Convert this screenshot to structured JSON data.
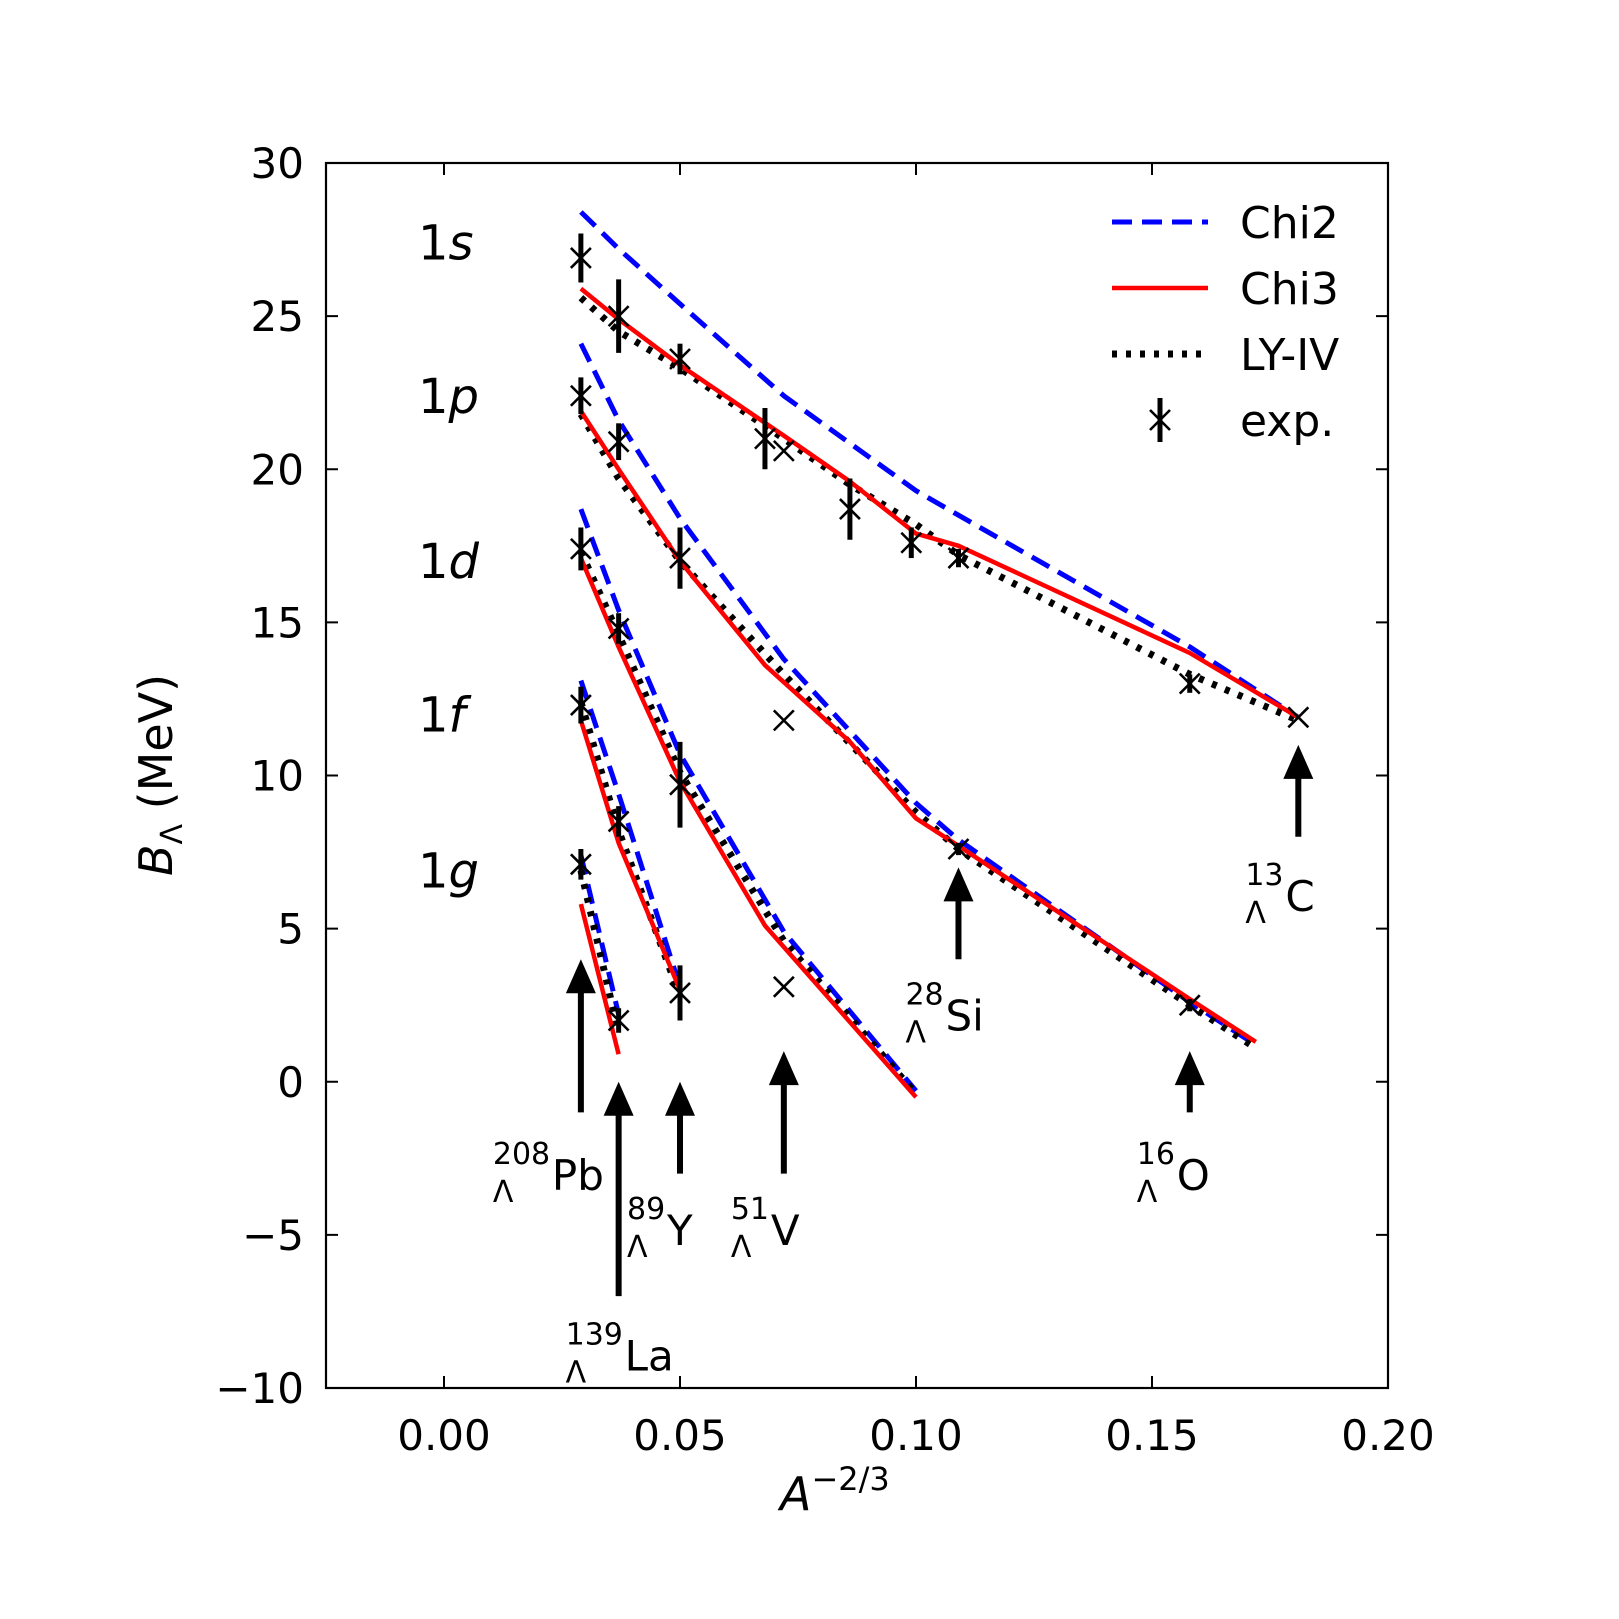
{
  "chart_data": {
    "type": "line",
    "xlabel": "A",
    "xlabel_exponent": "−2/3",
    "ylabel_main": "B",
    "ylabel_sub": "Λ",
    "ylabel_unit": " (MeV)",
    "xlim": [
      -0.025,
      0.2
    ],
    "ylim": [
      -10,
      30
    ],
    "xticks": [
      0.0,
      0.05,
      0.1,
      0.15,
      0.2
    ],
    "xtick_labels": [
      "0.00",
      "0.05",
      "0.10",
      "0.15",
      "0.20"
    ],
    "yticks": [
      -10,
      -5,
      0,
      5,
      10,
      15,
      20,
      25,
      30
    ],
    "ytick_labels": [
      "−10",
      "−5",
      "0",
      "5",
      "10",
      "15",
      "20",
      "25",
      "30"
    ],
    "legend": [
      {
        "label": "Chi2",
        "style": "dashed",
        "color": "#0000ff"
      },
      {
        "label": "Chi3",
        "style": "solid",
        "color": "#ff0000"
      },
      {
        "label": "LY-IV",
        "style": "dotted",
        "color": "#000000"
      },
      {
        "label": "exp.",
        "style": "marker",
        "color": "#000000"
      }
    ],
    "orbitals": [
      {
        "name": "1",
        "letter": "s",
        "y": 27.4
      },
      {
        "name": "1",
        "letter": "p",
        "y": 22.4
      },
      {
        "name": "1",
        "letter": "d",
        "y": 17.0
      },
      {
        "name": "1",
        "letter": "f",
        "y": 12.0
      },
      {
        "name": "1",
        "letter": "g",
        "y": 6.9
      }
    ],
    "series": [
      {
        "name": "Chi2",
        "orbital": "1s",
        "x": [
          0.029,
          0.037,
          0.05,
          0.072,
          0.1,
          0.109,
          0.158,
          0.181
        ],
        "y": [
          28.4,
          27.2,
          25.4,
          22.4,
          19.3,
          18.5,
          14.2,
          11.9
        ]
      },
      {
        "name": "Chi2",
        "orbital": "1p",
        "x": [
          0.029,
          0.037,
          0.05,
          0.072,
          0.1,
          0.109,
          0.158,
          0.172
        ],
        "y": [
          24.1,
          21.6,
          18.4,
          13.8,
          9.1,
          7.9,
          2.6,
          1.2
        ]
      },
      {
        "name": "Chi2",
        "orbital": "1d",
        "x": [
          0.029,
          0.037,
          0.05,
          0.072,
          0.1
        ],
        "y": [
          18.7,
          15.4,
          10.7,
          4.9,
          -0.3
        ]
      },
      {
        "name": "Chi2",
        "orbital": "1f",
        "x": [
          0.029,
          0.037,
          0.05
        ],
        "y": [
          13.1,
          9.4,
          3.1
        ]
      },
      {
        "name": "Chi2",
        "orbital": "1g",
        "x": [
          0.029,
          0.037
        ],
        "y": [
          7.4,
          2.2
        ]
      },
      {
        "name": "Chi3",
        "orbital": "1s",
        "x": [
          0.029,
          0.037,
          0.05,
          0.072,
          0.086,
          0.1,
          0.109,
          0.158,
          0.181
        ],
        "y": [
          25.9,
          24.9,
          23.4,
          21.1,
          19.6,
          17.9,
          17.5,
          14.0,
          11.9
        ]
      },
      {
        "name": "Chi3",
        "orbital": "1p",
        "x": [
          0.029,
          0.037,
          0.05,
          0.068,
          0.086,
          0.1,
          0.109,
          0.158,
          0.172
        ],
        "y": [
          21.9,
          20.0,
          17.0,
          13.6,
          11.1,
          8.6,
          7.7,
          2.7,
          1.3
        ]
      },
      {
        "name": "Chi3",
        "orbital": "1d",
        "x": [
          0.029,
          0.037,
          0.05,
          0.068,
          0.1
        ],
        "y": [
          17.1,
          14.2,
          9.8,
          5.1,
          -0.5
        ]
      },
      {
        "name": "Chi3",
        "orbital": "1f",
        "x": [
          0.029,
          0.037,
          0.05
        ],
        "y": [
          11.8,
          7.8,
          3.0
        ]
      },
      {
        "name": "Chi3",
        "orbital": "1g",
        "x": [
          0.029,
          0.037
        ],
        "y": [
          5.8,
          0.9
        ]
      },
      {
        "name": "LY-IV",
        "orbital": "1s",
        "x": [
          0.029,
          0.037,
          0.05,
          0.072,
          0.086,
          0.1,
          0.109,
          0.158,
          0.181
        ],
        "y": [
          25.6,
          24.5,
          23.3,
          21.0,
          19.5,
          18.2,
          17.2,
          13.3,
          11.8
        ]
      },
      {
        "name": "LY-IV",
        "orbital": "1p",
        "x": [
          0.029,
          0.037,
          0.05,
          0.072,
          0.1,
          0.109,
          0.158,
          0.172
        ],
        "y": [
          21.8,
          19.7,
          17.0,
          13.3,
          8.8,
          7.6,
          2.5,
          1.1
        ]
      },
      {
        "name": "LY-IV",
        "orbital": "1d",
        "x": [
          0.029,
          0.037,
          0.05,
          0.072,
          0.1
        ],
        "y": [
          17.3,
          14.6,
          10.1,
          4.6,
          -0.4
        ]
      },
      {
        "name": "LY-IV",
        "orbital": "1f",
        "x": [
          0.029,
          0.037,
          0.05
        ],
        "y": [
          12.4,
          8.2,
          2.8
        ]
      },
      {
        "name": "LY-IV",
        "orbital": "1g",
        "x": [
          0.029,
          0.037
        ],
        "y": [
          6.9,
          1.6
        ]
      }
    ],
    "experimental": [
      {
        "x": 0.029,
        "y": 26.9,
        "err": 0.8
      },
      {
        "x": 0.037,
        "y": 25.0,
        "err": 1.2
      },
      {
        "x": 0.05,
        "y": 23.6,
        "err": 0.5
      },
      {
        "x": 0.068,
        "y": 21.0,
        "err": 1.0
      },
      {
        "x": 0.072,
        "y": 20.6,
        "err": 0.0
      },
      {
        "x": 0.086,
        "y": 18.7,
        "err": 1.0
      },
      {
        "x": 0.099,
        "y": 17.6,
        "err": 0.5
      },
      {
        "x": 0.109,
        "y": 17.1,
        "err": 0.3
      },
      {
        "x": 0.158,
        "y": 13.0,
        "err": 0.3
      },
      {
        "x": 0.181,
        "y": 11.9,
        "err": 0.0
      },
      {
        "x": 0.029,
        "y": 22.4,
        "err": 0.6
      },
      {
        "x": 0.037,
        "y": 20.9,
        "err": 0.6
      },
      {
        "x": 0.05,
        "y": 17.1,
        "err": 1.0
      },
      {
        "x": 0.072,
        "y": 11.8,
        "err": 0.0
      },
      {
        "x": 0.109,
        "y": 7.6,
        "err": 0.2
      },
      {
        "x": 0.158,
        "y": 2.5,
        "err": 0.2
      },
      {
        "x": 0.029,
        "y": 17.4,
        "err": 0.7
      },
      {
        "x": 0.037,
        "y": 14.8,
        "err": 0.5
      },
      {
        "x": 0.05,
        "y": 9.7,
        "err": 1.4
      },
      {
        "x": 0.072,
        "y": 3.1,
        "err": 0.0
      },
      {
        "x": 0.029,
        "y": 12.3,
        "err": 0.6
      },
      {
        "x": 0.037,
        "y": 8.5,
        "err": 0.5
      },
      {
        "x": 0.05,
        "y": 2.9,
        "err": 0.9
      },
      {
        "x": 0.029,
        "y": 7.1,
        "err": 0.5
      },
      {
        "x": 0.037,
        "y": 2.0,
        "err": 0.4
      }
    ],
    "nuclei_labels": [
      {
        "mass": "208",
        "element": "Pb",
        "sub": "Λ",
        "x": 0.029,
        "arrow_from": -1.0,
        "arrow_to": 4.0,
        "label_y": -3.2,
        "align": "right"
      },
      {
        "mass": "139",
        "element": "La",
        "sub": "Λ",
        "x": 0.037,
        "arrow_from": -7.0,
        "arrow_to": 0.0,
        "label_y": -9.1,
        "align": "center"
      },
      {
        "mass": "89",
        "element": "Y",
        "sub": "Λ",
        "x": 0.05,
        "arrow_from": -3.0,
        "arrow_to": 0.0,
        "label_y": -5.0,
        "align": "center"
      },
      {
        "mass": "51",
        "element": "V",
        "sub": "Λ",
        "x": 0.072,
        "arrow_from": -3.0,
        "arrow_to": 1.0,
        "label_y": -5.0,
        "align": "center"
      },
      {
        "mass": "28",
        "element": "Si",
        "sub": "Λ",
        "x": 0.109,
        "arrow_from": 4.0,
        "arrow_to": 7.0,
        "label_y": 2.0,
        "align": "center"
      },
      {
        "mass": "16",
        "element": "O",
        "sub": "Λ",
        "x": 0.158,
        "arrow_from": -1.0,
        "arrow_to": 1.0,
        "label_y": -3.2,
        "align": "center"
      },
      {
        "mass": "13",
        "element": "C",
        "sub": "Λ",
        "x": 0.181,
        "arrow_from": 8.0,
        "arrow_to": 11.0,
        "label_y": 5.9,
        "align": "center"
      }
    ]
  }
}
